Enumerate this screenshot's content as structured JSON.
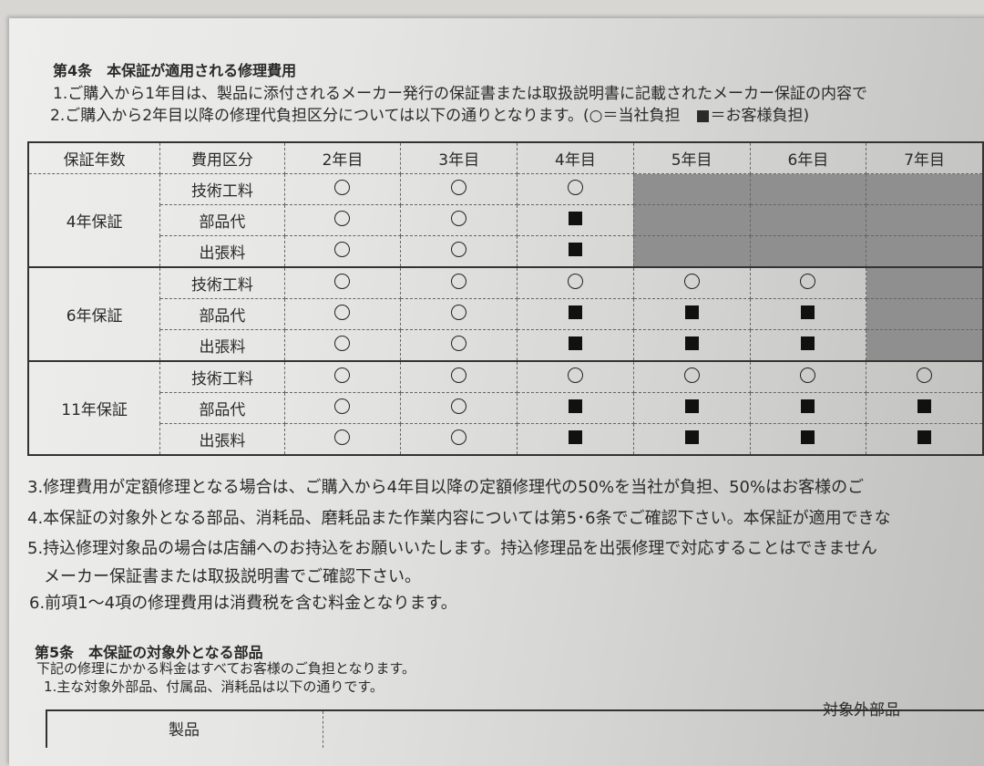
{
  "article4": {
    "title": "第4条　本保証が適用される修理費用",
    "items": [
      "1.ご購入から1年目は、製品に添付されるメーカー発行の保証書または取扱説明書に記載されたメーカー保証の内容で",
      "2.ご購入から2年目以降の修理代負担区分については以下の通りとなります。(○＝当社負担　■＝お客様負担)"
    ],
    "table": {
      "headers": [
        "保証年数",
        "費用区分",
        "2年目",
        "3年目",
        "4年目",
        "5年目",
        "6年目",
        "7年目"
      ],
      "groups": [
        {
          "label": "4年保証",
          "rows": [
            {
              "category": "技術工料",
              "cells": [
                "circle",
                "circle",
                "circle",
                "shaded",
                "shaded",
                "shaded"
              ]
            },
            {
              "category": "部品代",
              "cells": [
                "circle",
                "circle",
                "square",
                "shaded",
                "shaded",
                "shaded"
              ]
            },
            {
              "category": "出張料",
              "cells": [
                "circle",
                "circle",
                "square",
                "shaded",
                "shaded",
                "shaded"
              ]
            }
          ]
        },
        {
          "label": "6年保証",
          "rows": [
            {
              "category": "技術工料",
              "cells": [
                "circle",
                "circle",
                "circle",
                "circle",
                "circle",
                "shaded"
              ]
            },
            {
              "category": "部品代",
              "cells": [
                "circle",
                "circle",
                "square",
                "square",
                "square",
                "shaded"
              ]
            },
            {
              "category": "出張料",
              "cells": [
                "circle",
                "circle",
                "square",
                "square",
                "square",
                "shaded"
              ]
            }
          ]
        },
        {
          "label": "11年保証",
          "rows": [
            {
              "category": "技術工料",
              "cells": [
                "circle",
                "circle",
                "circle",
                "circle",
                "circle",
                "circle"
              ]
            },
            {
              "category": "部品代",
              "cells": [
                "circle",
                "circle",
                "square",
                "square",
                "square",
                "square"
              ]
            },
            {
              "category": "出張料",
              "cells": [
                "circle",
                "circle",
                "square",
                "square",
                "square",
                "square"
              ]
            }
          ]
        }
      ]
    },
    "notes": [
      "3.修理費用が定額修理となる場合は、ご購入から4年目以降の定額修理代の50%を当社が負担、50%はお客様のご",
      "4.本保証の対象外となる部品、消耗品、磨耗品また作業内容については第5･6条でご確認下さい。本保証が適用できな",
      "5.持込修理対象品の場合は店舗へのお持込をお願いいたします。持込修理品を出張修理で対応することはできません",
      "　メーカー保証書または取扱説明書でご確認下さい。",
      "6.前項1～4項の修理費用は消費税を含む料金となります。"
    ]
  },
  "article5": {
    "title": "第5条　本保証の対象外となる部品",
    "intro": "下記の修理にかかる料金はすべてお客様のご負担となります。",
    "item1": "1.主な対象外部品、付属品、消耗品は以下の通りです。",
    "table_headers": [
      "製品",
      "対象外部品"
    ]
  }
}
